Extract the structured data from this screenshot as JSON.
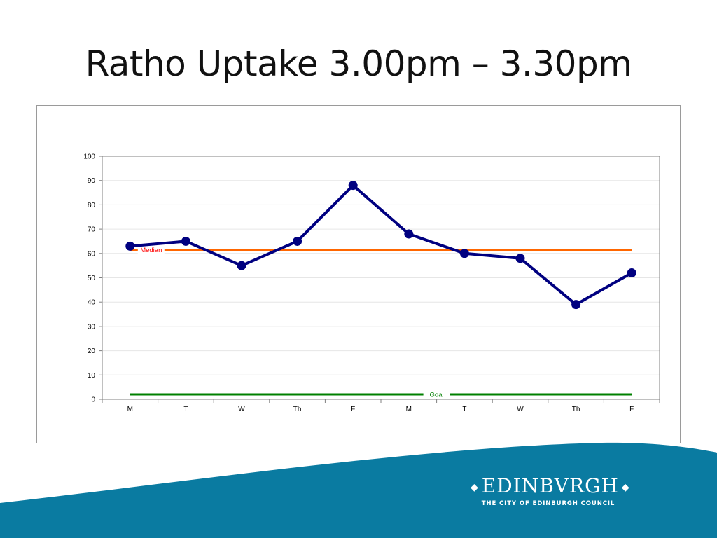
{
  "slide": {
    "title": "Ratho Uptake 3.00pm – 3.30pm"
  },
  "logo": {
    "wordmark": "EDINBVRGH",
    "subtitle": "THE CITY OF EDINBURGH COUNCIL"
  },
  "colors": {
    "series": "#000080",
    "median": "#ff6600",
    "median_label": "#ff0000",
    "goal": "#008000",
    "footer": "#0a7ba1"
  },
  "chart_data": {
    "type": "line",
    "categories": [
      "M",
      "T",
      "W",
      "Th",
      "F",
      "M",
      "T",
      "W",
      "Th",
      "F"
    ],
    "series": [
      {
        "values": [
          63,
          65,
          55,
          65,
          88,
          68,
          60,
          58,
          39,
          52
        ]
      }
    ],
    "reference_lines": [
      {
        "name": "Median",
        "value": 61.5
      },
      {
        "name": "Goal",
        "value": 2
      }
    ],
    "ylim": [
      0,
      100
    ],
    "yticks": [
      0,
      10,
      20,
      30,
      40,
      50,
      60,
      70,
      80,
      90,
      100
    ],
    "grid": true,
    "legend": "none"
  }
}
